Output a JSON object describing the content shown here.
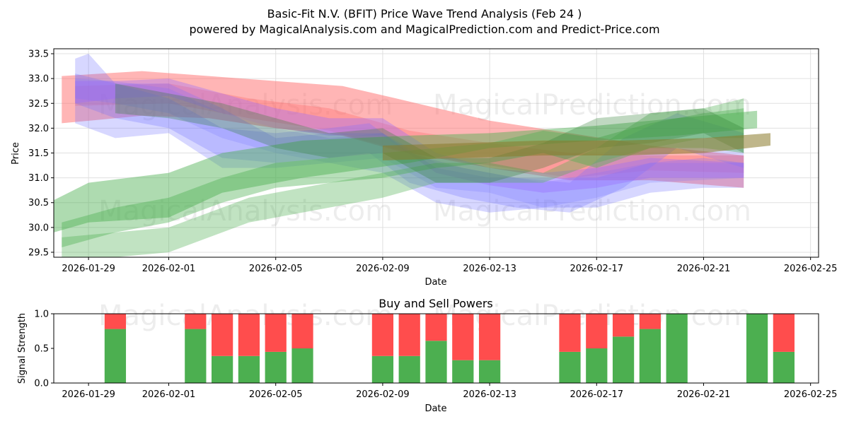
{
  "chart_data": [
    {
      "type": "area",
      "title": "Basic-Fit N.V. (BFIT) Price Wave Trend Analysis (Feb 24 )",
      "subtitle": "powered by MagicalAnalysis.com and MagicalPrediction.com and Predict-Price.com",
      "xlabel": "Date",
      "ylabel": "Price",
      "ylim": [
        29.4,
        33.6
      ],
      "yticks": [
        "29.5",
        "30.0",
        "30.5",
        "31.0",
        "31.5",
        "32.0",
        "32.5",
        "33.0",
        "33.5"
      ],
      "ytick_values": [
        29.5,
        30.0,
        30.5,
        31.0,
        31.5,
        32.0,
        32.5,
        33.0,
        33.5
      ],
      "xticks": [
        "2026-01-29",
        "2026-02-01",
        "2026-02-05",
        "2026-02-09",
        "2026-02-13",
        "2026-02-17",
        "2026-02-21",
        "2026-02-25"
      ],
      "xtick_days": [
        0,
        3,
        7,
        11,
        15,
        19,
        23,
        27
      ],
      "xlim_days": [
        -1.3,
        27.3
      ],
      "watermarks": [
        "MagicalAnalysis.com",
        "MagicalPrediction.com",
        "MagicalAnalysis.com",
        "MagicalPrediction.com"
      ],
      "grid": true,
      "series": [
        {
          "name": "red wave",
          "color": "#ff6b6b",
          "opacity": 0.5,
          "x": [
            -1,
            2,
            4.5,
            7,
            9.5,
            11.5,
            15,
            18,
            21,
            24.5
          ],
          "low": [
            32.1,
            32.25,
            32.2,
            32.0,
            31.85,
            31.55,
            31.2,
            30.95,
            30.95,
            30.8
          ],
          "high": [
            33.05,
            33.15,
            33.05,
            32.95,
            32.85,
            32.6,
            32.15,
            31.9,
            31.65,
            31.45
          ]
        },
        {
          "name": "red wave 2",
          "color": "#ff6b6b",
          "opacity": 0.35,
          "x": [
            -0.5,
            3,
            6,
            9,
            12,
            15,
            18,
            21,
            24.5
          ],
          "low": [
            32.45,
            32.5,
            32.2,
            31.95,
            31.5,
            31.25,
            31.0,
            31.15,
            31.1
          ],
          "high": [
            32.85,
            32.9,
            32.6,
            32.4,
            31.95,
            31.7,
            31.5,
            31.45,
            31.45
          ]
        },
        {
          "name": "blue wave 1",
          "color": "#7070ff",
          "opacity": 0.28,
          "x": [
            -0.5,
            0,
            1,
            3,
            5,
            7,
            9,
            11,
            13,
            15,
            17,
            19,
            21,
            23,
            24.5
          ],
          "low": [
            32.1,
            32.0,
            31.8,
            31.9,
            31.2,
            31.2,
            31.3,
            31.1,
            30.5,
            30.3,
            30.4,
            30.4,
            30.7,
            30.8,
            30.8
          ],
          "high": [
            33.4,
            33.5,
            32.9,
            32.9,
            32.4,
            31.8,
            31.9,
            31.9,
            31.2,
            31.0,
            31.0,
            31.0,
            31.3,
            31.4,
            31.3
          ]
        },
        {
          "name": "blue wave 2",
          "color": "#7070ff",
          "opacity": 0.28,
          "x": [
            -0.5,
            1,
            3,
            5,
            7,
            9,
            10.5,
            12,
            14,
            16,
            18,
            20,
            22,
            24.5
          ],
          "low": [
            32.5,
            32.2,
            32.0,
            31.4,
            31.3,
            31.4,
            31.5,
            30.9,
            30.6,
            30.4,
            30.3,
            30.8,
            31.6,
            31.2
          ],
          "high": [
            33.1,
            32.9,
            32.6,
            32.0,
            31.9,
            32.0,
            32.1,
            31.5,
            31.2,
            31.0,
            30.9,
            31.8,
            32.3,
            31.9
          ]
        },
        {
          "name": "blue wave 3",
          "color": "#7070ff",
          "opacity": 0.22,
          "x": [
            -0.5,
            1,
            3,
            5,
            7,
            9,
            11,
            13,
            15,
            17,
            19,
            21,
            24.5
          ],
          "low": [
            32.6,
            32.5,
            32.3,
            31.8,
            31.5,
            31.3,
            31.4,
            30.8,
            30.7,
            30.4,
            30.6,
            30.9,
            31.0
          ],
          "high": [
            33.0,
            32.95,
            32.8,
            32.3,
            32.0,
            31.8,
            31.9,
            31.3,
            31.1,
            30.9,
            31.1,
            31.3,
            31.3
          ]
        },
        {
          "name": "purple wave",
          "color": "#9966ff",
          "opacity": 0.35,
          "x": [
            -0.5,
            1,
            3,
            5,
            7,
            9,
            11,
            13,
            15,
            17,
            19,
            21,
            24.5
          ],
          "low": [
            32.5,
            32.6,
            32.65,
            32.3,
            32.0,
            31.85,
            31.85,
            31.1,
            30.85,
            30.7,
            30.8,
            31.0,
            31.0
          ],
          "high": [
            32.95,
            32.95,
            33.0,
            32.7,
            32.4,
            32.2,
            32.2,
            31.5,
            31.2,
            31.1,
            31.2,
            31.4,
            31.3
          ]
        },
        {
          "name": "green wave 1",
          "color": "#4caf50",
          "opacity": 0.45,
          "x": [
            -1.3,
            0,
            3,
            5,
            8,
            12,
            15,
            19,
            22,
            25
          ],
          "low": [
            29.9,
            30.1,
            30.2,
            30.7,
            31.0,
            31.3,
            31.6,
            31.75,
            31.85,
            32.0
          ],
          "high": [
            30.55,
            30.9,
            31.1,
            31.5,
            31.75,
            31.85,
            31.9,
            32.05,
            32.2,
            32.35
          ]
        },
        {
          "name": "green wave 2",
          "color": "#4caf50",
          "opacity": 0.4,
          "x": [
            -1,
            1,
            3,
            5,
            7,
            9,
            11,
            13,
            15,
            17,
            19,
            21,
            23,
            24.5
          ],
          "low": [
            29.6,
            29.9,
            30.1,
            30.5,
            30.8,
            30.9,
            31.0,
            31.2,
            31.3,
            31.5,
            31.2,
            31.6,
            31.6,
            31.5
          ],
          "high": [
            30.1,
            30.4,
            30.6,
            31.0,
            31.3,
            31.4,
            31.5,
            31.6,
            31.7,
            31.95,
            31.8,
            32.1,
            32.3,
            32.4
          ]
        },
        {
          "name": "green wave 3",
          "color": "#4caf50",
          "opacity": 0.35,
          "x": [
            -1,
            1,
            3,
            6,
            9,
            11,
            13,
            15,
            17,
            19,
            21,
            23,
            24.5
          ],
          "low": [
            29.2,
            29.4,
            29.5,
            30.1,
            30.4,
            30.6,
            30.9,
            30.9,
            30.9,
            31.3,
            31.6,
            31.8,
            31.8
          ],
          "high": [
            29.8,
            29.9,
            30.0,
            30.6,
            30.9,
            31.1,
            31.3,
            31.3,
            31.1,
            31.6,
            32.3,
            32.4,
            32.6
          ]
        },
        {
          "name": "green wave 4",
          "color": "#2e7d32",
          "opacity": 0.3,
          "x": [
            1,
            3,
            5,
            7,
            9,
            11,
            13,
            15,
            17,
            19,
            21,
            23,
            24.5
          ],
          "low": [
            32.3,
            32.2,
            32.0,
            31.6,
            31.4,
            31.5,
            30.9,
            30.9,
            31.2,
            31.6,
            31.7,
            31.9,
            31.5
          ],
          "high": [
            32.9,
            32.7,
            32.5,
            32.2,
            31.9,
            32.0,
            31.4,
            31.4,
            31.7,
            32.2,
            32.3,
            32.4,
            32.0
          ]
        },
        {
          "name": "olive trend",
          "color": "#8b7a2a",
          "opacity": 0.55,
          "x": [
            11,
            14,
            17,
            20,
            23,
            25.5
          ],
          "low": [
            31.35,
            31.4,
            31.45,
            31.45,
            31.5,
            31.65
          ],
          "high": [
            31.65,
            31.7,
            31.75,
            31.75,
            31.8,
            31.9
          ]
        }
      ]
    },
    {
      "type": "bar",
      "title": "Buy and Sell Powers",
      "xlabel": "Date",
      "ylabel": "Signal Strength",
      "ylim": [
        0,
        1
      ],
      "yticks": [
        "0.0",
        "0.5",
        "1.0"
      ],
      "ytick_values": [
        0,
        0.5,
        1.0
      ],
      "xticks": [
        "2026-01-29",
        "2026-02-01",
        "2026-02-05",
        "2026-02-09",
        "2026-02-13",
        "2026-02-17",
        "2026-02-21",
        "2026-02-25"
      ],
      "xtick_days": [
        0,
        3,
        7,
        11,
        15,
        19,
        23,
        27
      ],
      "xlim_days": [
        -1.3,
        27.3
      ],
      "buy_color": "#4caf50",
      "sell_color": "#ff4d4d",
      "series": [
        {
          "name": "Buy",
          "values": [
            0.78,
            0.78,
            0.39,
            0.39,
            0.45,
            0.5,
            0.39,
            0.39,
            0.61,
            0.33,
            0.33,
            0.45,
            0.5,
            0.67,
            0.78,
            1.0,
            1.0,
            0.45
          ]
        },
        {
          "name": "Sell",
          "values": [
            0.22,
            0.22,
            0.61,
            0.61,
            0.55,
            0.5,
            0.61,
            0.61,
            0.39,
            0.67,
            0.67,
            0.55,
            0.5,
            0.33,
            0.22,
            0.0,
            0.0,
            0.55
          ]
        }
      ],
      "days": [
        1,
        4,
        5,
        6,
        7,
        8,
        11,
        12,
        13,
        14,
        15,
        18,
        19,
        20,
        21,
        22,
        25,
        26
      ],
      "watermarks": [
        "MagicalAnalysis.com",
        "MagicalPrediction.com"
      ]
    }
  ]
}
